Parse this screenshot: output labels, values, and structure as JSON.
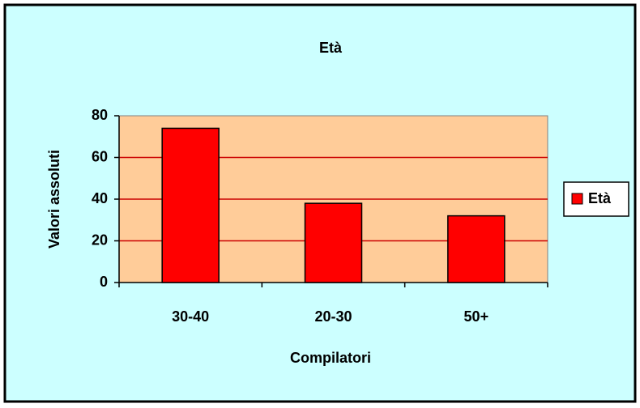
{
  "chart_data": {
    "type": "bar",
    "title": "Età",
    "x_label": "Compilatori",
    "y_label": "Valori assoluti",
    "categories": [
      "30-40",
      "20-30",
      "50+"
    ],
    "series": [
      {
        "name": "Età",
        "color": "#ff0000",
        "values": [
          74,
          38,
          32
        ]
      }
    ],
    "ylim": [
      0,
      80
    ],
    "yticks": [
      0,
      20,
      40,
      60,
      80
    ],
    "grid": true,
    "legend": "right"
  }
}
